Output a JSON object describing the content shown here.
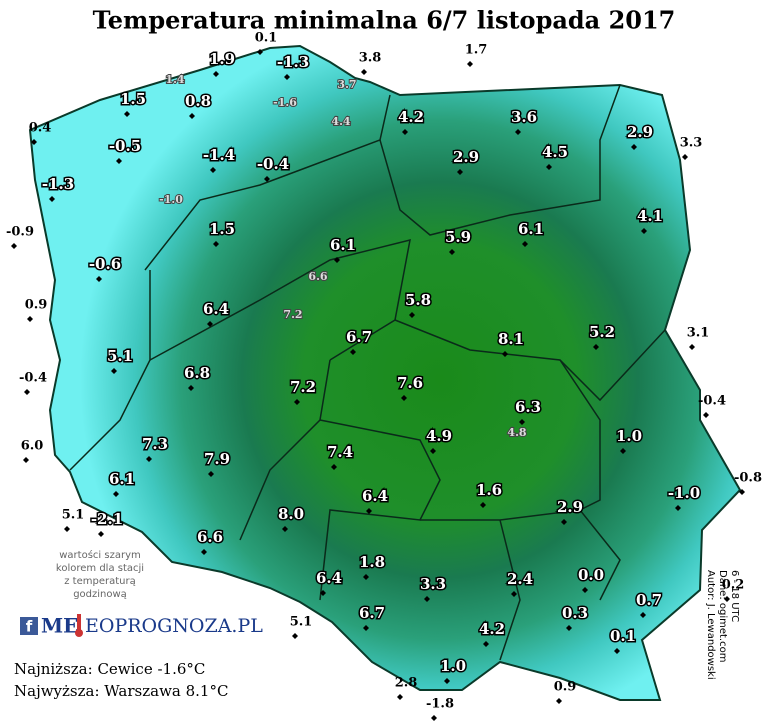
{
  "header": {
    "title": "Temperatura minimalna 6/7 listopada 2017"
  },
  "stations": [
    "0.1",
    "1.9",
    "-1.3",
    "3.8",
    "1.7",
    "1.4",
    "3.7",
    "-1.6",
    "1.5",
    "0.8",
    "4.2",
    "3.6",
    "4.4",
    "2.9",
    "3.3",
    "0.4",
    "-0.5",
    "-1.4",
    "-0.4",
    "2.9",
    "4.5",
    "-1.3",
    "-1.0",
    "-0.9",
    "1.5",
    "4.1",
    "5.9",
    "6.1",
    "6.1",
    "-0.6",
    "6.6",
    "0.9",
    "6.4",
    "7.2",
    "5.8",
    "6.7",
    "8.1",
    "5.2",
    "3.1",
    "5.1",
    "-0.4",
    "6.8",
    "7.2",
    "7.6",
    "-0.4",
    "6.3",
    "4.8",
    "6.0",
    "7.3",
    "7.9",
    "1.0",
    "4.9",
    "7.4",
    "6.1",
    "-0.8",
    "-1.0",
    "1.6",
    "6.4",
    "2.9",
    "5.1",
    "-2.1",
    "8.0",
    "6.6",
    "1.8",
    "3.3",
    "6.4",
    "2.4",
    "0.0",
    "0.2",
    "0.7",
    "0.3",
    "6.7",
    "5.1",
    "4.2",
    "0.1",
    "1.0",
    "2.8",
    "-1.8",
    "0.9"
  ],
  "note": [
    "wartości szarym",
    "kolorem dla stacji",
    "z temperaturą",
    "godzinową"
  ],
  "logo": {
    "icon": "f",
    "prefix": "ME",
    "suffix": "EOPROGNOZA.PL"
  },
  "footer": {
    "lowest": "Najniższa: Cewice -1.6°C",
    "highest": "Najwyższa: Warszawa 8.1°C"
  },
  "credits": [
    "Autor: J. Lewandowski",
    "Dane: ogimet.com",
    "6 - 18 UTC"
  ]
}
